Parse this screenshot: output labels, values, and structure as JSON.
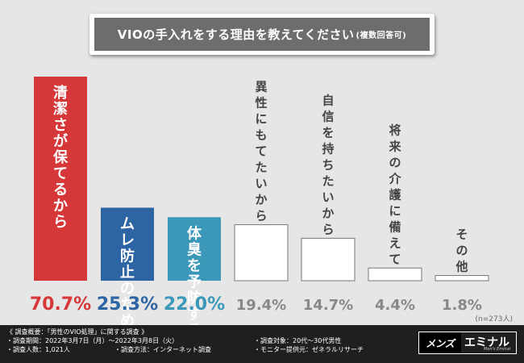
{
  "title": {
    "main": "VIOの手入れをする理由を教えてください",
    "sub": "(複数回答可)"
  },
  "chart_data": {
    "type": "bar",
    "categories": [
      "清潔さが保てるから",
      "ムレ防止のため",
      "体臭を予防するため",
      "異性にもてたいから",
      "自信を持ちたいから",
      "将来の介護に備えて",
      "その他"
    ],
    "values": [
      70.7,
      25.3,
      22.0,
      19.4,
      14.7,
      4.4,
      1.8
    ],
    "value_labels": [
      "70.7%",
      "25.3%",
      "22.0%",
      "19.4%",
      "14.7%",
      "4.4%",
      "1.8%"
    ],
    "ylim": [
      0,
      100
    ],
    "bar_styles": [
      "red",
      "blue",
      "teal",
      "outline",
      "outline",
      "outline",
      "outline"
    ],
    "sample_note": "(n=273人)"
  },
  "colors": {
    "red": "#d6383a",
    "blue": "#2d64a3",
    "teal": "#3c98b8",
    "outline_text": "#888888",
    "background": "#e6e6e6"
  },
  "footer": {
    "survey_title": "《 調査概要：「男性のVIO処理」に関する調査 》",
    "period": "・調査期間：2022年3月7日（月）～2022年3月8日（火）",
    "count": "・調査人数：1,021人",
    "method": "・調査方法：インターネット調査",
    "target": "・調査対象：20代～30代男性",
    "provider": "・モニター提供元：ゼネラルリサーチ"
  },
  "logo": {
    "left": "メンズ",
    "brand": "エミナル",
    "tagline": "Men's Eminal"
  }
}
